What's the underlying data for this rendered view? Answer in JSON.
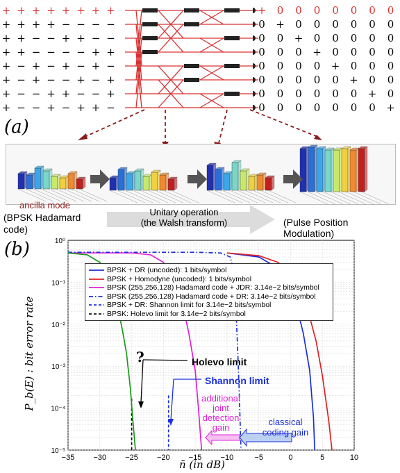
{
  "panel_a": {
    "label": "(a)",
    "hadamard_matrix": [
      [
        "+",
        "+",
        "+",
        "+",
        "+",
        "+",
        "+",
        "+"
      ],
      [
        "+",
        "+",
        "+",
        "+",
        "−",
        "−",
        "−",
        "−"
      ],
      [
        "+",
        "+",
        "−",
        "−",
        "+",
        "+",
        "−",
        "−"
      ],
      [
        "+",
        "+",
        "−",
        "−",
        "−",
        "−",
        "+",
        "+"
      ],
      [
        "+",
        "−",
        "+",
        "−",
        "+",
        "−",
        "+",
        "−"
      ],
      [
        "+",
        "−",
        "+",
        "−",
        "−",
        "+",
        "−",
        "+"
      ],
      [
        "+",
        "−",
        "−",
        "+",
        "+",
        "−",
        "−",
        "+"
      ],
      [
        "+",
        "−",
        "−",
        "+",
        "−",
        "+",
        "+",
        "−"
      ]
    ],
    "identity_matrix": [
      [
        "+",
        "0",
        "0",
        "0",
        "0",
        "0",
        "0",
        "0"
      ],
      [
        "0",
        "+",
        "0",
        "0",
        "0",
        "0",
        "0",
        "0"
      ],
      [
        "0",
        "0",
        "+",
        "0",
        "0",
        "0",
        "0",
        "0"
      ],
      [
        "0",
        "0",
        "0",
        "+",
        "0",
        "0",
        "0",
        "0"
      ],
      [
        "0",
        "0",
        "0",
        "0",
        "+",
        "0",
        "0",
        "0"
      ],
      [
        "0",
        "0",
        "0",
        "0",
        "0",
        "+",
        "0",
        "0"
      ],
      [
        "0",
        "0",
        "0",
        "0",
        "0",
        "0",
        "+",
        "0"
      ],
      [
        "0",
        "0",
        "0",
        "0",
        "0",
        "0",
        "0",
        "+"
      ]
    ],
    "highlight_color": "#d93030",
    "ancilla_label": "ancilla mode",
    "left_caption_line1": "(BPSK Hadamard",
    "left_caption_line2": "code)",
    "arrow_caption_line1": "Unitary operation",
    "arrow_caption_line2": "(the Walsh transform)",
    "right_caption": "(Pulse Position Modulation)"
  },
  "panel_b": {
    "label": "(b)",
    "annotations": {
      "holevo": "Holevo limit",
      "shannon": "Shannon limit",
      "question": "?",
      "joint_gain_1": "additional",
      "joint_gain_2": "joint",
      "joint_gain_3": "detection",
      "joint_gain_4": "gain",
      "coding_gain_1": "classical",
      "coding_gain_2": "coding gain"
    }
  },
  "chart_data": {
    "type": "line",
    "xlabel": "n̄ (in dB)",
    "ylabel": "P_b(E) : bit error rate",
    "xlim": [
      -35,
      10
    ],
    "ylim": [
      1e-05,
      1
    ],
    "yscale": "log",
    "xticks": [
      "−35",
      "−30",
      "−25",
      "−20",
      "−15",
      "−10",
      "−5",
      "0",
      "5",
      "10"
    ],
    "yticks": [
      "10⁰",
      "10⁻¹",
      "10⁻²",
      "10⁻³",
      "10⁻⁴",
      "10⁻⁵"
    ],
    "grid": true,
    "legend_position": "top-center",
    "series": [
      {
        "name": "BPSK + DR (uncoded): 1 bits/symbol",
        "color": "#1a2fe0",
        "dash": "solid",
        "x": [
          -10,
          -5,
          -2,
          0,
          1,
          2,
          3,
          3.6,
          3.8
        ],
        "y": [
          0.5,
          0.4,
          0.22,
          0.06,
          0.025,
          0.006,
          0.0008,
          6e-05,
          1e-05
        ]
      },
      {
        "name": "BPSK + Homodyne (uncoded): 1 bits/symbol",
        "color": "#e02020",
        "dash": "solid",
        "x": [
          -10,
          -5,
          -2,
          0,
          2,
          3,
          4,
          5,
          6,
          6.5
        ],
        "y": [
          0.5,
          0.43,
          0.3,
          0.16,
          0.04,
          0.015,
          0.004,
          0.0006,
          5e-05,
          1e-05
        ]
      },
      {
        "name": "BPSK (255,256,128) Hadamard code + JDR: 3.14e−2 bits/symbol",
        "color": "#e020d8",
        "dash": "solid",
        "x": [
          -35,
          -25,
          -22,
          -20,
          -18,
          -17,
          -16,
          -15,
          -14.5,
          -14
        ],
        "y": [
          0.5,
          0.5,
          0.45,
          0.3,
          0.08,
          0.03,
          0.006,
          0.0008,
          0.0001,
          1e-05
        ]
      },
      {
        "name": "BPSK (255,256,128) Hadamard code + DR: 3.14e−2 bits/symbol",
        "color": "#1a2fe0",
        "dash": "dashdot",
        "x": [
          -35,
          -15,
          -11,
          -9.5,
          -9,
          -8.7,
          -8.4,
          -8.1,
          -7.8
        ],
        "y": [
          0.52,
          0.52,
          0.5,
          0.4,
          0.2,
          0.05,
          0.005,
          0.0003,
          1e-05
        ]
      },
      {
        "name": "BPSK + DR: Shannon limit for 3.14e−2 bits/symbol",
        "color": "#1a2fe0",
        "dash": "dashed",
        "x": [
          -19.2,
          -19.2
        ],
        "y": [
          0.0002,
          1e-05
        ]
      },
      {
        "name": "BPSK: Holevo limit for 3.14e−2 bits/symbol",
        "color": "#111111",
        "dash": "dashed",
        "x": [
          -25,
          -25
        ],
        "y": [
          0.00017,
          1e-05
        ]
      },
      {
        "name": "",
        "color": "#1a9a1a",
        "dash": "solid",
        "x": [
          -35,
          -32,
          -30,
          -28.5,
          -27.5,
          -26.5,
          -25.8,
          -25.2,
          -24.8,
          -24.4
        ],
        "y": [
          0.5,
          0.45,
          0.3,
          0.12,
          0.04,
          0.008,
          0.002,
          0.0003,
          5e-05,
          1e-05
        ]
      }
    ]
  }
}
